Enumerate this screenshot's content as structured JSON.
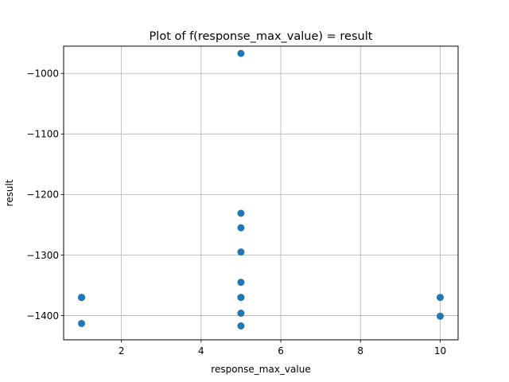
{
  "chart_data": {
    "type": "scatter",
    "title": "Plot of f(response_max_value) = result",
    "xlabel": "response_max_value",
    "ylabel": "result",
    "xlim": [
      0.55,
      10.45
    ],
    "ylim": [
      -1440,
      -955
    ],
    "xticks": [
      2,
      4,
      6,
      8,
      10
    ],
    "yticks": [
      -1000,
      -1100,
      -1200,
      -1300,
      -1400
    ],
    "xtick_labels": [
      "2",
      "4",
      "6",
      "8",
      "10"
    ],
    "ytick_labels": [
      "−1000",
      "−1100",
      "−1200",
      "−1300",
      "−1400"
    ],
    "grid": true,
    "marker_color": "#1f77b4",
    "points": [
      {
        "x": 1,
        "y": -1370
      },
      {
        "x": 1,
        "y": -1370
      },
      {
        "x": 1,
        "y": -1370
      },
      {
        "x": 1,
        "y": -1413
      },
      {
        "x": 5,
        "y": -967
      },
      {
        "x": 5,
        "y": -1231
      },
      {
        "x": 5,
        "y": -1255
      },
      {
        "x": 5,
        "y": -1295
      },
      {
        "x": 5,
        "y": -1345
      },
      {
        "x": 5,
        "y": -1370
      },
      {
        "x": 5,
        "y": -1370
      },
      {
        "x": 5,
        "y": -1396
      },
      {
        "x": 5,
        "y": -1417
      },
      {
        "x": 10,
        "y": -1370
      },
      {
        "x": 10,
        "y": -1401
      }
    ]
  }
}
